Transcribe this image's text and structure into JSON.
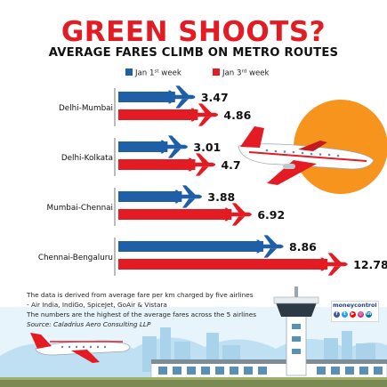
{
  "title": "GREEN SHOOTS?",
  "subtitle": "AVERAGE FARES CLIMB ON METRO ROUTES",
  "colors": {
    "title_red": "#e31b23",
    "jan1_blue": "#1f5fa8",
    "jan3_red": "#e31b23",
    "sun_orange": "#f7941d",
    "sky_blue": "#cfe8f7"
  },
  "chart_data": {
    "type": "bar",
    "orientation": "horizontal",
    "categories": [
      "Delhi-Mumbai",
      "Delhi-Kolkata",
      "Mumbai-Chennai",
      "Chennai-Bengaluru"
    ],
    "series": [
      {
        "name": "Jan 1st week",
        "values": [
          3.47,
          3.01,
          3.88,
          8.86
        ]
      },
      {
        "name": "Jan 3rd week",
        "values": [
          4.86,
          4.7,
          6.92,
          12.78
        ]
      }
    ],
    "value_labels": {
      "Jan 1st week": [
        "3.47",
        "3.01",
        "3.88",
        "8.86"
      ],
      "Jan 3rd week": [
        "4.86",
        "4.7",
        "6.92",
        "12.78"
      ]
    },
    "legend_placement": "top",
    "grid": false,
    "xlim": [
      0,
      13
    ]
  },
  "notes": [
    "The data is derived from average fare per km charged by five airlines",
    "- Air India, IndiGo, SpiceJet, GoAir & Vistara",
    "The numbers are the highest of the average fares across the 5 airlines",
    "Source: Caladrius Aero Consulting LLP"
  ],
  "brand": "moneycontrol",
  "social_icons": [
    "facebook-icon",
    "twitter-icon",
    "youtube-icon",
    "instagram-icon",
    "linkedin-icon"
  ]
}
